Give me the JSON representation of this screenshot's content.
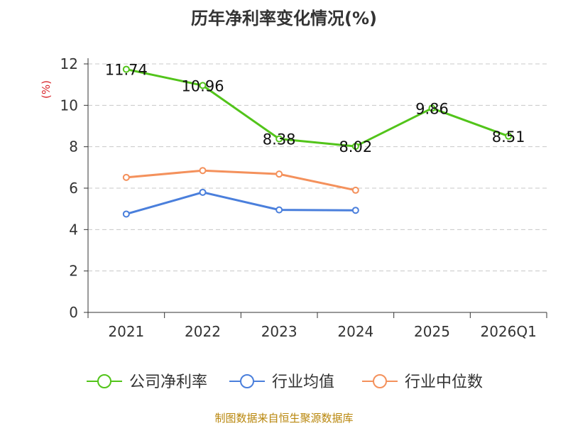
{
  "chart_data": {
    "type": "line",
    "title": "历年净利率变化情况(%)",
    "ylabel": "(%)",
    "ylim": [
      0,
      12
    ],
    "yticks": [
      0,
      2,
      4,
      6,
      8,
      10,
      12
    ],
    "grid": true,
    "legend_position": "bottom",
    "categories": [
      "2021",
      "2022",
      "2023",
      "2024",
      "2025",
      "2026Q1"
    ],
    "series": [
      {
        "name": "公司净利率",
        "color": "#52c41a",
        "values": [
          11.74,
          10.96,
          8.38,
          8.02,
          9.86,
          8.51
        ],
        "labels": [
          "11.74",
          "10.96",
          "8.38",
          "8.02",
          "9.86",
          "8.51"
        ]
      },
      {
        "name": "行业均值",
        "color": "#4a7fdc",
        "values": [
          4.75,
          5.8,
          4.95,
          4.93,
          null,
          null
        ]
      },
      {
        "name": "行业中位数",
        "color": "#f4915c",
        "values": [
          6.52,
          6.85,
          6.68,
          5.9,
          null,
          null
        ]
      }
    ]
  },
  "source": "制图数据来自恒生聚源数据库"
}
